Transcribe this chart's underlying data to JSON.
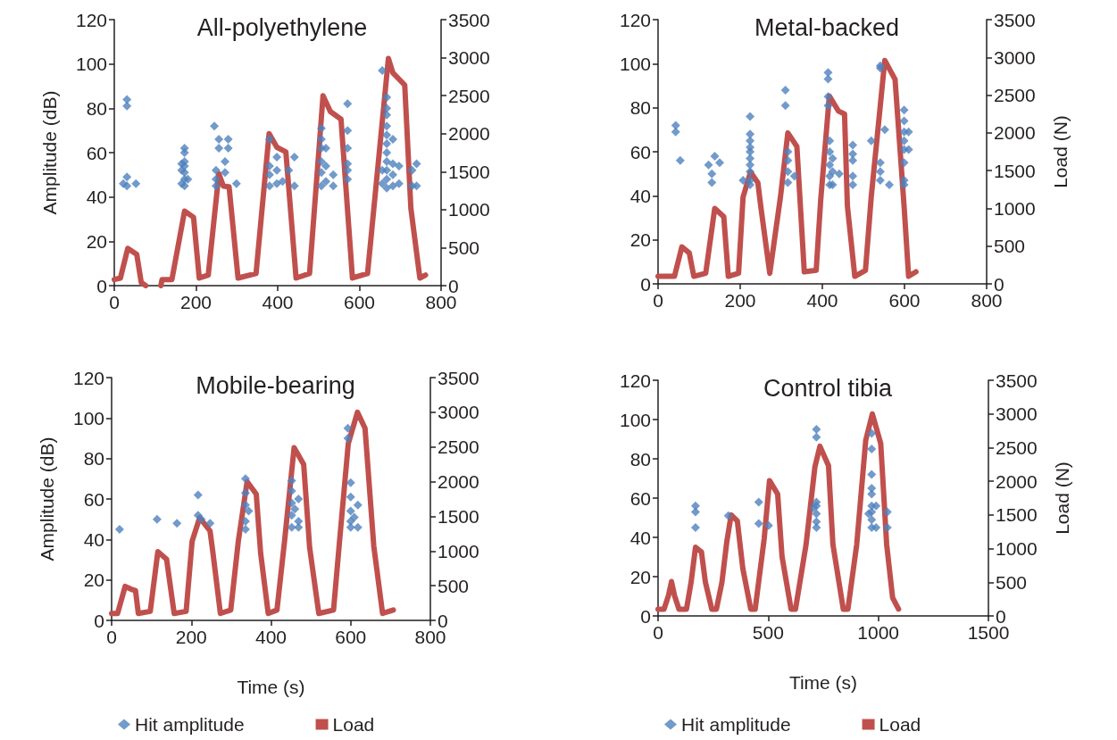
{
  "chart_data": [
    {
      "type": "scatter",
      "title": "All-polyethylene",
      "ylabel": "Amplitude (dB)",
      "xlim": [
        0,
        800
      ],
      "xticks": [
        0,
        200,
        400,
        600,
        800
      ],
      "ylim": [
        0,
        120
      ],
      "yticks": [
        0,
        20,
        40,
        60,
        80,
        100,
        120
      ],
      "y2lim": [
        0,
        3500
      ],
      "y2ticks": [
        0,
        500,
        1000,
        1500,
        2000,
        2500,
        3000,
        3500
      ],
      "series": [
        {
          "type": "scatter",
          "marker": "diamond",
          "color": "#4f81bd",
          "x": [
            31,
            31,
            31,
            31,
            53,
            22,
            172,
            172,
            172,
            172,
            172,
            172,
            172,
            165,
            165,
            165,
            180,
            245,
            256,
            256,
            279,
            279,
            249,
            249,
            249,
            271,
            271,
            299,
            380,
            380,
            380,
            380,
            398,
            398,
            398,
            441,
            441,
            427,
            412,
            507,
            507,
            507,
            507,
            507,
            507,
            518,
            518,
            518,
            536,
            536,
            571,
            571,
            571,
            571,
            571,
            571,
            656,
            656,
            656,
            667,
            667,
            667,
            667,
            667,
            667,
            667,
            667,
            667,
            667,
            667,
            682,
            682,
            682,
            682,
            697,
            697,
            729,
            729,
            740,
            740
          ],
          "values": [
            84,
            81,
            45,
            49,
            46,
            46,
            62,
            60,
            56,
            54,
            51,
            48,
            45,
            55,
            52,
            46,
            48,
            72,
            66,
            62,
            66,
            62,
            52,
            45,
            48,
            56,
            51,
            46,
            66,
            54,
            50,
            45,
            58,
            52,
            46,
            58,
            45,
            52,
            47,
            71,
            66,
            62,
            56,
            51,
            45,
            62,
            54,
            47,
            50,
            45,
            82,
            70,
            62,
            55,
            52,
            48,
            97,
            52,
            46,
            85,
            80,
            77,
            72,
            68,
            64,
            60,
            56,
            52,
            48,
            44,
            66,
            55,
            50,
            45,
            54,
            46,
            52,
            45,
            55,
            45
          ]
        },
        {
          "type": "line",
          "marker": "none",
          "axis": "y2",
          "color": "#c0504d",
          "x": [
            0,
            15,
            33,
            55,
            66,
            77,
            90,
            114,
            117,
            141,
            172,
            194,
            208,
            230,
            256,
            267,
            281,
            303,
            347,
            379,
            398,
            420,
            445,
            478,
            511,
            529,
            555,
            583,
            620,
            671,
            682,
            711,
            726,
            748,
            762
          ],
          "values": [
            80,
            100,
            490,
            410,
            40,
            0,
            null,
            0,
            80,
            80,
            980,
            900,
            100,
            140,
            1470,
            1310,
            1300,
            100,
            160,
            2000,
            1820,
            1760,
            100,
            160,
            2500,
            2290,
            2190,
            100,
            160,
            2990,
            2800,
            2640,
            1020,
            100,
            140
          ]
        }
      ]
    },
    {
      "type": "scatter",
      "title": "Metal-backed",
      "y2label": "Load (N)",
      "xlim": [
        0,
        800
      ],
      "xticks": [
        0,
        200,
        400,
        600,
        800
      ],
      "ylim": [
        0,
        120
      ],
      "yticks": [
        0,
        20,
        40,
        60,
        80,
        100,
        120
      ],
      "y2lim": [
        0,
        3500
      ],
      "y2ticks": [
        0,
        500,
        1000,
        1500,
        2000,
        2500,
        3000,
        3500
      ],
      "series": [
        {
          "type": "scatter",
          "marker": "diamond",
          "color": "#4f81bd",
          "x": [
            43,
            43,
            54,
            123,
            131,
            131,
            138,
            150,
            207,
            224,
            224,
            224,
            224,
            224,
            224,
            224,
            224,
            224,
            224,
            310,
            310,
            316,
            316,
            316,
            316,
            332,
            414,
            414,
            414,
            414,
            418,
            418,
            418,
            418,
            418,
            425,
            425,
            425,
            441,
            474,
            474,
            474,
            474,
            474,
            519,
            541,
            541,
            541,
            541,
            541,
            552,
            563,
            599,
            599,
            599,
            599,
            599,
            599,
            599,
            599,
            610,
            610
          ],
          "values": [
            72,
            69,
            56,
            54,
            50,
            46,
            58,
            55,
            47,
            76,
            68,
            65,
            62,
            60,
            57,
            54,
            51,
            47,
            45,
            88,
            81,
            60,
            56,
            51,
            46,
            49,
            96,
            93,
            85,
            81,
            65,
            60,
            54,
            49,
            45,
            57,
            51,
            45,
            50,
            63,
            59,
            56,
            49,
            45,
            65,
            55,
            51,
            47,
            99,
            98,
            70,
            45,
            79,
            74,
            69,
            65,
            61,
            55,
            47,
            45,
            69,
            61
          ]
        },
        {
          "type": "line",
          "marker": "none",
          "axis": "y2",
          "color": "#c0504d",
          "x": [
            0,
            40,
            58,
            76,
            87,
            116,
            138,
            160,
            171,
            196,
            207,
            225,
            243,
            250,
            272,
            298,
            316,
            338,
            356,
            385,
            396,
            417,
            439,
            454,
            461,
            479,
            505,
            519,
            552,
            577,
            599,
            610,
            628
          ],
          "values": [
            100,
            100,
            490,
            410,
            100,
            140,
            1000,
            890,
            100,
            140,
            1150,
            1480,
            1340,
            1030,
            140,
            1150,
            2000,
            1820,
            160,
            180,
            1110,
            2490,
            2290,
            2250,
            1030,
            100,
            180,
            1150,
            2960,
            2710,
            1030,
            100,
            160
          ]
        }
      ]
    },
    {
      "type": "scatter",
      "title": "Mobile-bearing",
      "xlabel": "Time (s)",
      "ylabel": "Amplitude (dB)",
      "legend": "bottom",
      "xlim": [
        0,
        800
      ],
      "xticks": [
        0,
        200,
        400,
        600,
        800
      ],
      "ylim": [
        0,
        120
      ],
      "yticks": [
        0,
        20,
        40,
        60,
        80,
        100,
        120
      ],
      "y2lim": [
        0,
        3500
      ],
      "y2ticks": [
        0,
        500,
        1000,
        1500,
        2000,
        2500,
        3000,
        3500
      ],
      "series": [
        {
          "type": "scatter",
          "name": "Hit amplitude",
          "marker": "diamond",
          "color": "#4f81bd",
          "x": [
            20,
            114,
            164,
            217,
            217,
            247,
            225,
            336,
            336,
            336,
            336,
            336,
            344,
            452,
            452,
            452,
            452,
            452,
            469,
            469,
            469,
            460,
            593,
            593,
            600,
            600,
            600,
            600,
            600,
            618,
            618,
            609
          ],
          "values": [
            45,
            50,
            48,
            62,
            52,
            48,
            50,
            70,
            63,
            57,
            49,
            45,
            54,
            69,
            64,
            58,
            52,
            46,
            60,
            49,
            46,
            55,
            95,
            90,
            68,
            61,
            54,
            49,
            46,
            57,
            46,
            51
          ]
        },
        {
          "type": "line",
          "name": "Load",
          "marker": "none",
          "axis": "y2",
          "color": "#c0504d",
          "x": [
            0,
            15,
            34,
            49,
            60,
            67,
            97,
            116,
            138,
            157,
            187,
            202,
            221,
            247,
            254,
            273,
            299,
            318,
            340,
            363,
            374,
            393,
            415,
            434,
            458,
            482,
            497,
            520,
            557,
            572,
            594,
            617,
            636,
            658,
            680,
            707
          ],
          "values": [
            100,
            100,
            490,
            450,
            430,
            100,
            130,
            990,
            880,
            100,
            130,
            1140,
            1480,
            1290,
            990,
            100,
            150,
            1140,
            2000,
            1820,
            970,
            100,
            150,
            1140,
            2490,
            2250,
            1050,
            100,
            150,
            1140,
            2550,
            3000,
            2770,
            1070,
            100,
            150
          ]
        }
      ]
    },
    {
      "type": "scatter",
      "title": "Control tibia",
      "xlabel": "Time (s)",
      "y2label": "Load (N)",
      "legend": "bottom",
      "xlim": [
        0,
        1500
      ],
      "xticks": [
        0,
        500,
        1000,
        1500
      ],
      "ylim": [
        0,
        120
      ],
      "yticks": [
        0,
        20,
        40,
        60,
        80,
        100,
        120
      ],
      "y2lim": [
        0,
        3500
      ],
      "y2ticks": [
        0,
        500,
        1000,
        1500,
        2000,
        2500,
        3000,
        3500
      ],
      "series": [
        {
          "type": "scatter",
          "name": "Hit amplitude",
          "marker": "diamond",
          "color": "#4f81bd",
          "x": [
            170,
            170,
            170,
            319,
            457,
            457,
            502,
            719,
            719,
            719,
            719,
            719,
            719,
            719,
            706,
            970,
            970,
            970,
            970,
            970,
            970,
            970,
            970,
            970,
            956,
            990,
            990,
            1041,
            1041
          ],
          "values": [
            56,
            53,
            45,
            51,
            58,
            47,
            46,
            95,
            91,
            58,
            56,
            52,
            48,
            45,
            55,
            93,
            85,
            72,
            65,
            62,
            56,
            53,
            49,
            45,
            52,
            56,
            45,
            53,
            45
          ]
        },
        {
          "type": "line",
          "name": "Load",
          "marker": "none",
          "axis": "y2",
          "color": "#c0504d",
          "x": [
            0,
            27,
            47,
            61,
            75,
            95,
            129,
            150,
            170,
            197,
            215,
            244,
            265,
            290,
            312,
            332,
            360,
            385,
            421,
            441,
            482,
            506,
            543,
            563,
            604,
            624,
            672,
            712,
            735,
            774,
            794,
            841,
            862,
            902,
            943,
            973,
            1011,
            1038,
            1065,
            1092
          ],
          "values": [
            100,
            100,
            300,
            510,
            300,
            100,
            100,
            500,
            1020,
            950,
            500,
            100,
            100,
            500,
            1100,
            1500,
            1410,
            700,
            100,
            100,
            1150,
            2010,
            1810,
            880,
            100,
            100,
            1060,
            2210,
            2520,
            2230,
            1060,
            100,
            100,
            1060,
            2610,
            3000,
            2560,
            1060,
            270,
            100
          ]
        }
      ]
    }
  ]
}
